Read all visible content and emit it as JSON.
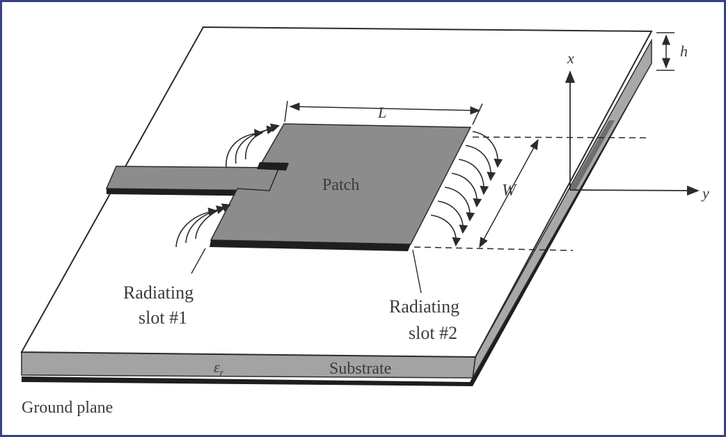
{
  "labels": {
    "patch": "Patch",
    "length": "L",
    "width": "W",
    "height": "h",
    "axis_x": "x",
    "axis_y": "y",
    "slot1_line1": "Radiating",
    "slot1_line2": "slot #1",
    "slot2_line1": "Radiating",
    "slot2_line2": "slot #2",
    "epsilon": "ε",
    "epsilon_sub": "r",
    "substrate": "Substrate",
    "ground_plane": "Ground plane"
  },
  "colors": {
    "frame": "#3a3f8a",
    "patch": "#8c8c8c",
    "substrate_edge": "#9a9a9a",
    "ground": "#1e1e1e",
    "line": "#2b2b2b",
    "text": "#3b3b3b"
  }
}
